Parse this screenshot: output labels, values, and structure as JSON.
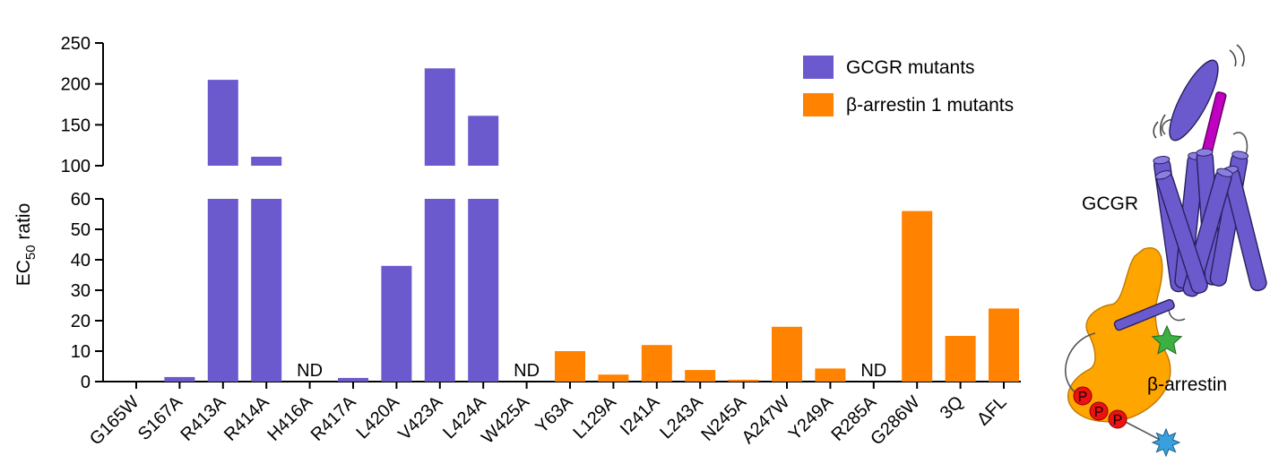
{
  "chart_data": {
    "type": "bar",
    "ylabel": "EC",
    "ylabel_sub": "50",
    "ylabel_suffix": " ratio",
    "axis_break": {
      "lower": [
        0,
        60
      ],
      "upper": [
        100,
        250
      ]
    },
    "lower_ticks": [
      "0",
      "10",
      "20",
      "30",
      "40",
      "50",
      "60"
    ],
    "upper_ticks": [
      "100",
      "150",
      "200",
      "250"
    ],
    "categories": [
      "G165W",
      "S167A",
      "R413A",
      "R414A",
      "H416A",
      "R417A",
      "L420A",
      "V423A",
      "L424A",
      "W425A",
      "Y63A",
      "L129A",
      "I241A",
      "L243A",
      "N245A",
      "A247W",
      "Y249A",
      "R285A",
      "G286W",
      "3Q",
      "ΔFL"
    ],
    "values": [
      0,
      1.5,
      205,
      111,
      null,
      1.2,
      38,
      219,
      161,
      null,
      10,
      2.3,
      12,
      3.8,
      0.6,
      18,
      4.3,
      null,
      56,
      15,
      24
    ],
    "value_labels": [
      "",
      "",
      "",
      "",
      "ND",
      "",
      "",
      "",
      "",
      "ND",
      "",
      "",
      "",
      "",
      "",
      "",
      "",
      "ND",
      "",
      "",
      ""
    ],
    "groups": [
      "GCGR mutants",
      "GCGR mutants",
      "GCGR mutants",
      "GCGR mutants",
      "GCGR mutants",
      "GCGR mutants",
      "GCGR mutants",
      "GCGR mutants",
      "GCGR mutants",
      "GCGR mutants",
      "β-arrestin 1 mutants",
      "β-arrestin 1 mutants",
      "β-arrestin 1 mutants",
      "β-arrestin 1 mutants",
      "β-arrestin 1 mutants",
      "β-arrestin 1 mutants",
      "β-arrestin 1 mutants",
      "β-arrestin 1 mutants",
      "β-arrestin 1 mutants",
      "β-arrestin 1 mutants",
      "β-arrestin 1 mutants"
    ],
    "series": [
      {
        "name": "GCGR mutants",
        "color": "#6a5acd"
      },
      {
        "name": "β-arrestin 1 mutants",
        "color": "#ff8200"
      }
    ],
    "legend_placement": "top-right",
    "grid": false
  },
  "illustration": {
    "receptor_label": "GCGR",
    "arrestin_label": "β-arrestin",
    "phospho_label": "P",
    "colors": {
      "receptor": "#6a5acd",
      "arrestin": "#ffa500",
      "peptide": "#c000c0",
      "phospho": "#ee1111",
      "green_star": "#3cb040",
      "blue_star": "#3aa0dd"
    }
  }
}
